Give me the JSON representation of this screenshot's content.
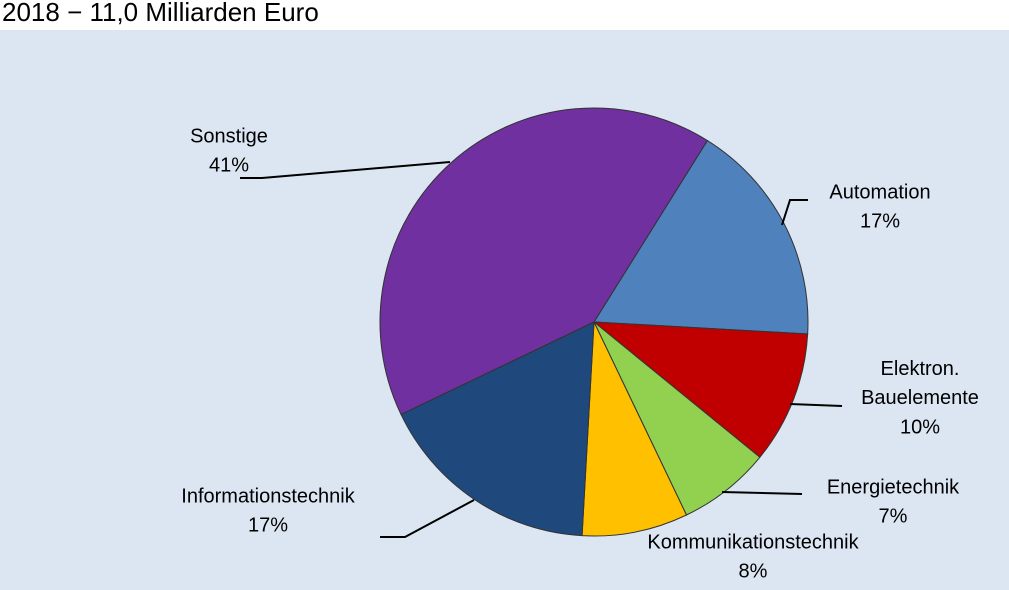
{
  "chart_data": {
    "type": "pie",
    "title": "2018 − 11,0 Milliarden Euro",
    "categories": [
      "Automation",
      "Elektron.\nBauelemente",
      "Energietechnik",
      "Kommunikationstechnik",
      "Informationstechnik",
      "Sonstige"
    ],
    "values": [
      17,
      10,
      7,
      8,
      17,
      41
    ],
    "value_labels": [
      "17%",
      "10%",
      "7%",
      "8%",
      "17%",
      "41%"
    ],
    "colors": [
      "#4f81bd",
      "#c00000",
      "#92d050",
      "#ffc000",
      "#1f497d",
      "#7030a0"
    ]
  }
}
